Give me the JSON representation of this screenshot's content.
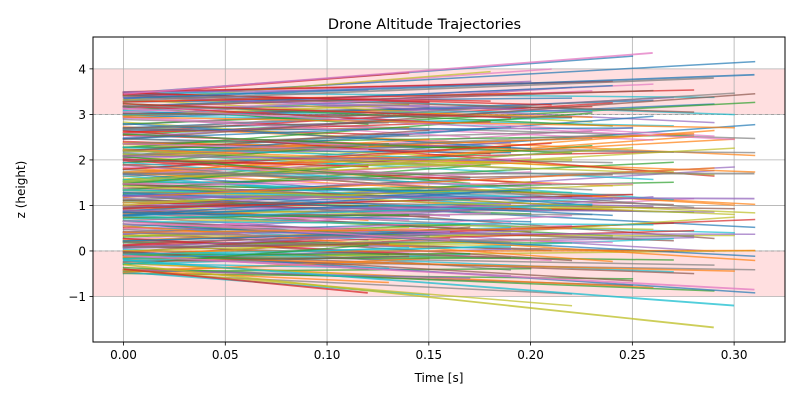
{
  "chart_data": {
    "type": "line",
    "title": "Drone Altitude Trajectories",
    "xlabel": "Time [s]",
    "ylabel": "z (height)",
    "xlim": [
      -0.015,
      0.325
    ],
    "ylim": [
      -2.0,
      4.7
    ],
    "grid": true,
    "x_ticks": [
      0.0,
      0.05,
      0.1,
      0.15,
      0.2,
      0.25,
      0.3
    ],
    "x_tick_labels": [
      "0.00",
      "0.05",
      "0.10",
      "0.15",
      "0.20",
      "0.25",
      "0.30"
    ],
    "y_ticks": [
      -1,
      0,
      1,
      2,
      3,
      4
    ],
    "y_tick_labels": [
      "−1",
      "0",
      "1",
      "2",
      "3",
      "4"
    ],
    "danger_bands": [
      {
        "y0": 3.0,
        "y1": 4.0,
        "color": "#ffdfe0"
      },
      {
        "y0": -1.0,
        "y1": 0.0,
        "color": "#ffdfe0"
      }
    ],
    "reference_lines": [
      0.0,
      3.0
    ],
    "num_trajectories": 300,
    "trajectory_start_range": [
      -0.5,
      3.5
    ],
    "trajectory_end_range": [
      -1.7,
      4.35
    ],
    "trajectory_duration_range": [
      0.12,
      0.31
    ],
    "highlighted_trajectories": [
      {
        "t0": 0.0,
        "z0": 3.45,
        "t1": 0.26,
        "z1": 4.35,
        "color": "#e377c2"
      },
      {
        "t0": 0.0,
        "z0": 3.35,
        "t1": 0.31,
        "z1": 3.87,
        "color": "#1f77b4"
      },
      {
        "t0": 0.0,
        "z0": 3.3,
        "t1": 0.29,
        "z1": 3.8,
        "color": "#7f7f7f"
      },
      {
        "t0": 0.0,
        "z0": -0.3,
        "t1": 0.29,
        "z1": -1.68,
        "color": "#bcbd22"
      },
      {
        "t0": 0.0,
        "z0": -0.2,
        "t1": 0.3,
        "z1": -1.2,
        "color": "#17becf"
      },
      {
        "t0": 0.0,
        "z0": -0.4,
        "t1": 0.12,
        "z1": -0.92,
        "color": "#d62728"
      },
      {
        "t0": 0.0,
        "z0": 1.7,
        "t1": 0.31,
        "z1": 1.7,
        "color": "#7f7f7f"
      },
      {
        "t0": 0.0,
        "z0": 1.2,
        "t1": 0.31,
        "z1": 1.15,
        "color": "#9467bd"
      },
      {
        "t0": 0.0,
        "z0": -0.1,
        "t1": 0.31,
        "z1": -0.85,
        "color": "#e377c2"
      }
    ],
    "series_colors": [
      "#1f77b4",
      "#ff7f0e",
      "#2ca02c",
      "#d62728",
      "#9467bd",
      "#8c564b",
      "#e377c2",
      "#7f7f7f",
      "#bcbd22",
      "#17becf"
    ]
  }
}
